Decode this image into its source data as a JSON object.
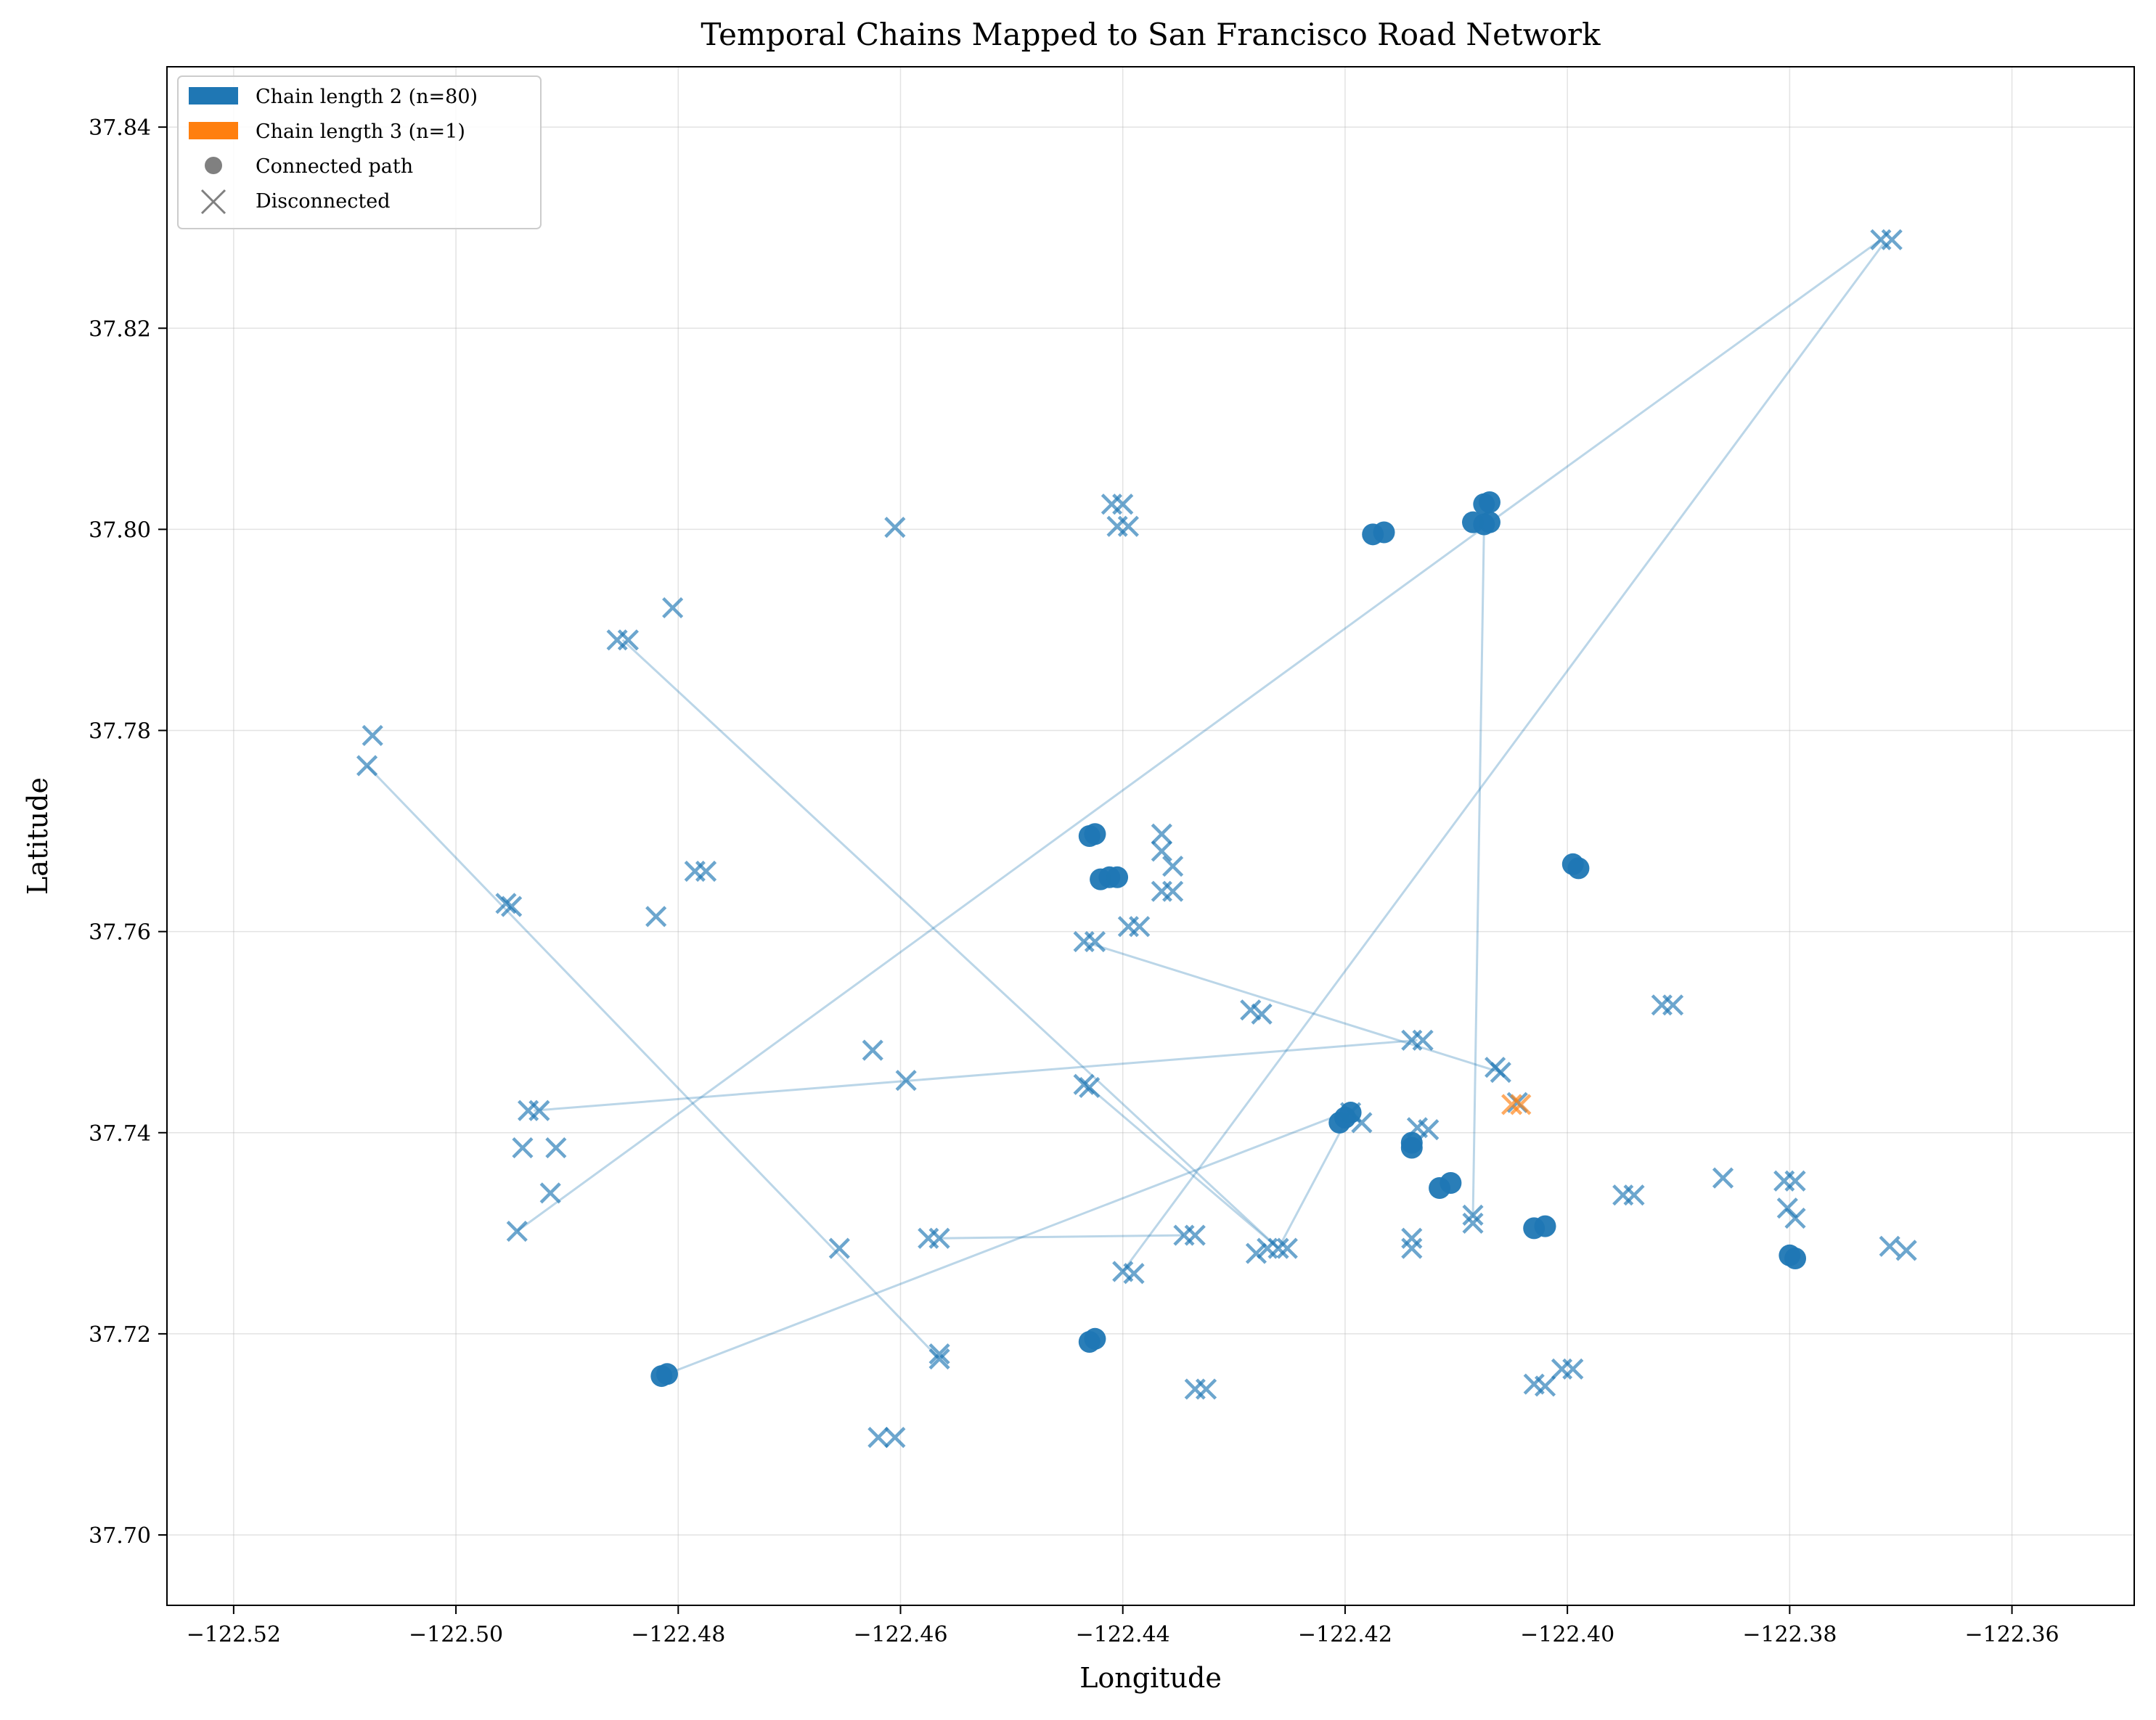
{
  "chart_data": {
    "type": "scatter",
    "title": "Temporal Chains Mapped to San Francisco Road Network",
    "xlabel": "Longitude",
    "ylabel": "Latitude",
    "xlim": [
      -122.526,
      -122.349
    ],
    "ylim": [
      37.693,
      37.846
    ],
    "xticks": [
      -122.52,
      -122.5,
      -122.48,
      -122.46,
      -122.44,
      -122.42,
      -122.4,
      -122.38,
      -122.36
    ],
    "xtick_labels": [
      "−122.52",
      "−122.50",
      "−122.48",
      "−122.46",
      "−122.44",
      "−122.42",
      "−122.40",
      "−122.38",
      "−122.36"
    ],
    "yticks": [
      37.7,
      37.72,
      37.74,
      37.76,
      37.78,
      37.8,
      37.82,
      37.84
    ],
    "ytick_labels": [
      "37.70",
      "37.72",
      "37.74",
      "37.76",
      "37.78",
      "37.80",
      "37.82",
      "37.84"
    ],
    "grid": true,
    "legend_position": "top-left",
    "colors": {
      "chain2": "#1f77b4",
      "chain3": "#ff7f0e",
      "neutral": "#808080"
    },
    "legend": [
      {
        "label": "Chain length 2 (n=80)",
        "kind": "patch",
        "color": "#1f77b4"
      },
      {
        "label": "Chain length 3 (n=1)",
        "kind": "patch",
        "color": "#ff7f0e"
      },
      {
        "label": "Connected path",
        "kind": "dot",
        "color": "#808080"
      },
      {
        "label": "Disconnected",
        "kind": "cross",
        "color": "#808080"
      }
    ],
    "connections": [
      [
        [
          -122.508,
          37.7765
        ],
        [
          -122.4565,
          37.7175
        ]
      ],
      [
        [
          -122.485,
          37.789
        ],
        [
          -122.426,
          37.7285
        ]
      ],
      [
        [
          -122.4945,
          37.7302
        ],
        [
          -122.4075,
          37.8002
        ]
      ],
      [
        [
          -122.493,
          37.7422
        ],
        [
          -122.4135,
          37.7492
        ]
      ],
      [
        [
          -122.4815,
          37.7158
        ],
        [
          -122.42,
          37.742
        ]
      ],
      [
        [
          -122.4565,
          37.7295
        ],
        [
          -122.4345,
          37.7298
        ]
      ],
      [
        [
          -122.4435,
          37.759
        ],
        [
          -122.406,
          37.746
        ]
      ],
      [
        [
          -122.443,
          37.7445
        ],
        [
          -122.426,
          37.7285
        ]
      ],
      [
        [
          -122.44,
          37.7262
        ],
        [
          -122.3715,
          37.8285
        ]
      ],
      [
        [
          -122.4085,
          37.7315
        ],
        [
          -122.4075,
          37.8002
        ]
      ],
      [
        [
          -122.4072,
          37.8005
        ],
        [
          -122.3718,
          37.8288
        ]
      ],
      [
        [
          -122.426,
          37.7285
        ],
        [
          -122.42,
          37.741
        ]
      ]
    ],
    "disconnected_points": [
      [
        -122.5075,
        37.7795
      ],
      [
        -122.508,
        37.7765
      ],
      [
        -122.4955,
        37.7628
      ],
      [
        -122.495,
        37.7625
      ],
      [
        -122.482,
        37.7615
      ],
      [
        -122.4805,
        37.7922
      ],
      [
        -122.4855,
        37.789
      ],
      [
        -122.4845,
        37.789
      ],
      [
        -122.4785,
        37.766
      ],
      [
        -122.4775,
        37.766
      ],
      [
        -122.4605,
        37.8002
      ],
      [
        -122.441,
        37.8025
      ],
      [
        -122.44,
        37.8025
      ],
      [
        -122.4405,
        37.8003
      ],
      [
        -122.4395,
        37.8003
      ],
      [
        -122.4625,
        37.7482
      ],
      [
        -122.4595,
        37.7452
      ],
      [
        -122.4945,
        37.7302
      ],
      [
        -122.4935,
        37.7422
      ],
      [
        -122.4925,
        37.7422
      ],
      [
        -122.494,
        37.7385
      ],
      [
        -122.491,
        37.7385
      ],
      [
        -122.4915,
        37.734
      ],
      [
        -122.4655,
        37.7285
      ],
      [
        -122.4565,
        37.7175
      ],
      [
        -122.4565,
        37.718
      ],
      [
        -122.462,
        37.7097
      ],
      [
        -122.4605,
        37.7097
      ],
      [
        -122.4565,
        37.7295
      ],
      [
        -122.4575,
        37.7295
      ],
      [
        -122.4435,
        37.759
      ],
      [
        -122.4425,
        37.759
      ],
      [
        -122.443,
        37.7445
      ],
      [
        -122.4435,
        37.7448
      ],
      [
        -122.4365,
        37.7697
      ],
      [
        -122.4365,
        37.768
      ],
      [
        -122.4355,
        37.7665
      ],
      [
        -122.4365,
        37.764
      ],
      [
        -122.4355,
        37.764
      ],
      [
        -122.4395,
        37.7605
      ],
      [
        -122.4385,
        37.7605
      ],
      [
        -122.4345,
        37.7298
      ],
      [
        -122.4335,
        37.7298
      ],
      [
        -122.44,
        37.7262
      ],
      [
        -122.439,
        37.726
      ],
      [
        -122.4335,
        37.7145
      ],
      [
        -122.4325,
        37.7145
      ],
      [
        -122.4285,
        37.7522
      ],
      [
        -122.4275,
        37.7518
      ],
      [
        -122.428,
        37.728
      ],
      [
        -122.427,
        37.7285
      ],
      [
        -122.426,
        37.7285
      ],
      [
        -122.4252,
        37.7285
      ],
      [
        -122.4195,
        37.742
      ],
      [
        -122.4185,
        37.741
      ],
      [
        -122.414,
        37.7492
      ],
      [
        -122.413,
        37.7492
      ],
      [
        -122.4135,
        37.7405
      ],
      [
        -122.4125,
        37.7403
      ],
      [
        -122.414,
        37.7295
      ],
      [
        -122.414,
        37.7285
      ],
      [
        -122.4065,
        37.7465
      ],
      [
        -122.406,
        37.746
      ],
      [
        -122.4085,
        37.7318
      ],
      [
        -122.4085,
        37.731
      ],
      [
        -122.4045,
        37.743
      ],
      [
        -122.403,
        37.715
      ],
      [
        -122.402,
        37.7148
      ],
      [
        -122.4005,
        37.7165
      ],
      [
        -122.3995,
        37.7165
      ],
      [
        -122.395,
        37.7338
      ],
      [
        -122.394,
        37.7338
      ],
      [
        -122.3915,
        37.7527
      ],
      [
        -122.3905,
        37.7527
      ],
      [
        -122.386,
        37.7355
      ],
      [
        -122.3805,
        37.7352
      ],
      [
        -122.3795,
        37.7352
      ],
      [
        -122.3802,
        37.7325
      ],
      [
        -122.3795,
        37.7315
      ],
      [
        -122.371,
        37.7287
      ],
      [
        -122.3695,
        37.7283
      ],
      [
        -122.3718,
        37.8288
      ],
      [
        -122.3708,
        37.8288
      ]
    ],
    "chain3_points": [
      [
        -122.405,
        37.7428
      ],
      [
        -122.4042,
        37.7428
      ]
    ],
    "connected_points": [
      [
        -122.4175,
        37.7995
      ],
      [
        -122.4165,
        37.7997
      ],
      [
        -122.4085,
        37.8007
      ],
      [
        -122.4075,
        37.8005
      ],
      [
        -122.407,
        37.8007
      ],
      [
        -122.4075,
        37.8025
      ],
      [
        -122.407,
        37.8027
      ],
      [
        -122.443,
        37.7695
      ],
      [
        -122.4425,
        37.7697
      ],
      [
        -122.442,
        37.7652
      ],
      [
        -122.4412,
        37.7654
      ],
      [
        -122.4405,
        37.7654
      ],
      [
        -122.3995,
        37.7667
      ],
      [
        -122.399,
        37.7663
      ],
      [
        -122.4205,
        37.741
      ],
      [
        -122.42,
        37.7415
      ],
      [
        -122.4195,
        37.742
      ],
      [
        -122.414,
        37.7385
      ],
      [
        -122.414,
        37.739
      ],
      [
        -122.4115,
        37.7345
      ],
      [
        -122.4105,
        37.735
      ],
      [
        -122.403,
        37.7305
      ],
      [
        -122.402,
        37.7307
      ],
      [
        -122.38,
        37.7278
      ],
      [
        -122.3795,
        37.7275
      ],
      [
        -122.4815,
        37.7158
      ],
      [
        -122.481,
        37.716
      ],
      [
        -122.443,
        37.7192
      ],
      [
        -122.4425,
        37.7195
      ]
    ]
  }
}
